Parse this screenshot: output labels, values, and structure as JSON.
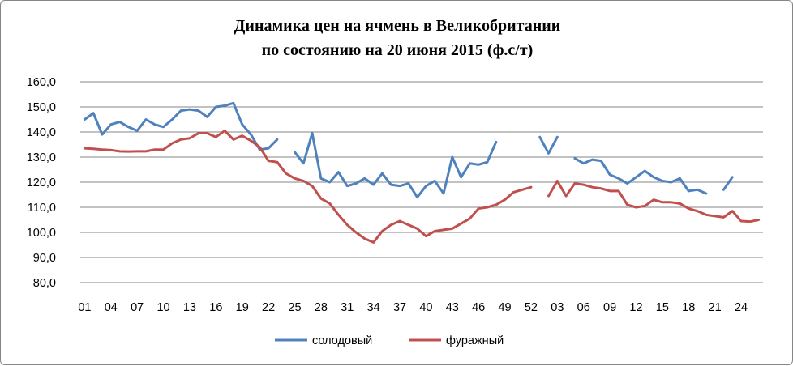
{
  "chart_data": {
    "type": "line",
    "title": "Динамика цен на ячмень в Великобритании",
    "subtitle": "по состоянию на 20 июня 2015 (ф.с/т)",
    "xlabel": "",
    "ylabel": "",
    "ylim": [
      80,
      160
    ],
    "y_ticks": [
      "80,0",
      "90,0",
      "100,0",
      "110,0",
      "120,0",
      "130,0",
      "140,0",
      "150,0",
      "160,0"
    ],
    "x_tick_labels": [
      "01",
      "04",
      "07",
      "10",
      "13",
      "16",
      "19",
      "22",
      "25",
      "28",
      "31",
      "34",
      "37",
      "40",
      "43",
      "46",
      "49",
      "52",
      "03",
      "06",
      "09",
      "12",
      "15",
      "18",
      "21",
      "24"
    ],
    "grid": true,
    "legend_position": "bottom",
    "series_colors": [
      "#4f81bd",
      "#c0504d"
    ],
    "series": [
      {
        "name": "солодовый",
        "points": [
          [
            0,
            145
          ],
          [
            1,
            147.5
          ],
          [
            2,
            139
          ],
          [
            3,
            143
          ],
          [
            4,
            144
          ],
          [
            5,
            142
          ],
          [
            6,
            140.5
          ],
          [
            7,
            145
          ],
          [
            8,
            143
          ],
          [
            9,
            142
          ],
          [
            10,
            145
          ],
          [
            11,
            148.5
          ],
          [
            12,
            149
          ],
          [
            13,
            148.5
          ],
          [
            14,
            146
          ],
          [
            15,
            150
          ],
          [
            16,
            150.5
          ],
          [
            17,
            151.5
          ],
          [
            18,
            143
          ],
          [
            19,
            139
          ],
          [
            20,
            133
          ],
          [
            21,
            133.5
          ],
          [
            22,
            137
          ],
          [
            24,
            132
          ],
          [
            25,
            127.5
          ],
          [
            26,
            139.5
          ],
          [
            27,
            121.5
          ],
          [
            28,
            120
          ],
          [
            29,
            124
          ],
          [
            30,
            118.5
          ],
          [
            31,
            119.5
          ],
          [
            32,
            121.5
          ],
          [
            33,
            119
          ],
          [
            34,
            123.5
          ],
          [
            35,
            119
          ],
          [
            36,
            118.5
          ],
          [
            37,
            119.5
          ],
          [
            38,
            114
          ],
          [
            39,
            118.5
          ],
          [
            40,
            120.5
          ],
          [
            41,
            115.5
          ],
          [
            42,
            130
          ],
          [
            43,
            122
          ],
          [
            44,
            127.5
          ],
          [
            45,
            127
          ],
          [
            46,
            128
          ],
          [
            47,
            136
          ],
          [
            52,
            138
          ],
          [
            53,
            131.5
          ],
          [
            54,
            138
          ],
          [
            56,
            129.5
          ],
          [
            57,
            127.5
          ],
          [
            58,
            129
          ],
          [
            59,
            128.5
          ],
          [
            60,
            123
          ],
          [
            61,
            121.5
          ],
          [
            62,
            119.5
          ],
          [
            63,
            122
          ],
          [
            64,
            124.5
          ],
          [
            65,
            122
          ],
          [
            66,
            120.5
          ],
          [
            67,
            120
          ],
          [
            68,
            121.5
          ],
          [
            69,
            116.5
          ],
          [
            70,
            117
          ],
          [
            71,
            115.5
          ],
          [
            73,
            117
          ],
          [
            74,
            122
          ]
        ]
      },
      {
        "name": "фуражный",
        "points": [
          [
            0,
            133.5
          ],
          [
            1,
            133.3
          ],
          [
            2,
            133
          ],
          [
            3,
            132.8
          ],
          [
            4,
            132.3
          ],
          [
            5,
            132.2
          ],
          [
            6,
            132.3
          ],
          [
            7,
            132.3
          ],
          [
            8,
            133
          ],
          [
            9,
            133
          ],
          [
            10,
            135.5
          ],
          [
            11,
            137
          ],
          [
            12,
            137.5
          ],
          [
            13,
            139.5
          ],
          [
            14,
            139.5
          ],
          [
            15,
            138
          ],
          [
            16,
            140.5
          ],
          [
            17,
            137
          ],
          [
            18,
            138.5
          ],
          [
            19,
            136.5
          ],
          [
            20,
            134
          ],
          [
            21,
            128.5
          ],
          [
            22,
            128
          ],
          [
            23,
            123.5
          ],
          [
            24,
            121.5
          ],
          [
            25,
            120.5
          ],
          [
            26,
            118.5
          ],
          [
            27,
            113.5
          ],
          [
            28,
            111.5
          ],
          [
            29,
            107
          ],
          [
            30,
            103
          ],
          [
            31,
            100
          ],
          [
            32,
            97.5
          ],
          [
            33,
            96
          ],
          [
            34,
            100.5
          ],
          [
            35,
            103
          ],
          [
            36,
            104.5
          ],
          [
            37,
            103
          ],
          [
            38,
            101.5
          ],
          [
            39,
            98.5
          ],
          [
            40,
            100.5
          ],
          [
            41,
            101
          ],
          [
            42,
            101.5
          ],
          [
            43,
            103.5
          ],
          [
            44,
            105.5
          ],
          [
            45,
            109.5
          ],
          [
            46,
            110
          ],
          [
            47,
            111
          ],
          [
            48,
            113
          ],
          [
            49,
            116
          ],
          [
            50,
            117
          ],
          [
            51,
            118
          ],
          [
            53,
            114.5
          ],
          [
            54,
            120.5
          ],
          [
            55,
            114.5
          ],
          [
            56,
            119.5
          ],
          [
            57,
            119
          ],
          [
            58,
            118
          ],
          [
            59,
            117.5
          ],
          [
            60,
            116.5
          ],
          [
            61,
            116.5
          ],
          [
            62,
            111
          ],
          [
            63,
            110
          ],
          [
            64,
            110.5
          ],
          [
            65,
            113
          ],
          [
            66,
            112
          ],
          [
            67,
            112
          ],
          [
            68,
            111.5
          ],
          [
            69,
            109.5
          ],
          [
            70,
            108.5
          ],
          [
            71,
            107
          ],
          [
            72,
            106.5
          ],
          [
            73,
            106
          ],
          [
            74,
            108.5
          ],
          [
            75,
            104.5
          ],
          [
            76,
            104.3
          ],
          [
            77,
            105
          ]
        ]
      }
    ]
  }
}
